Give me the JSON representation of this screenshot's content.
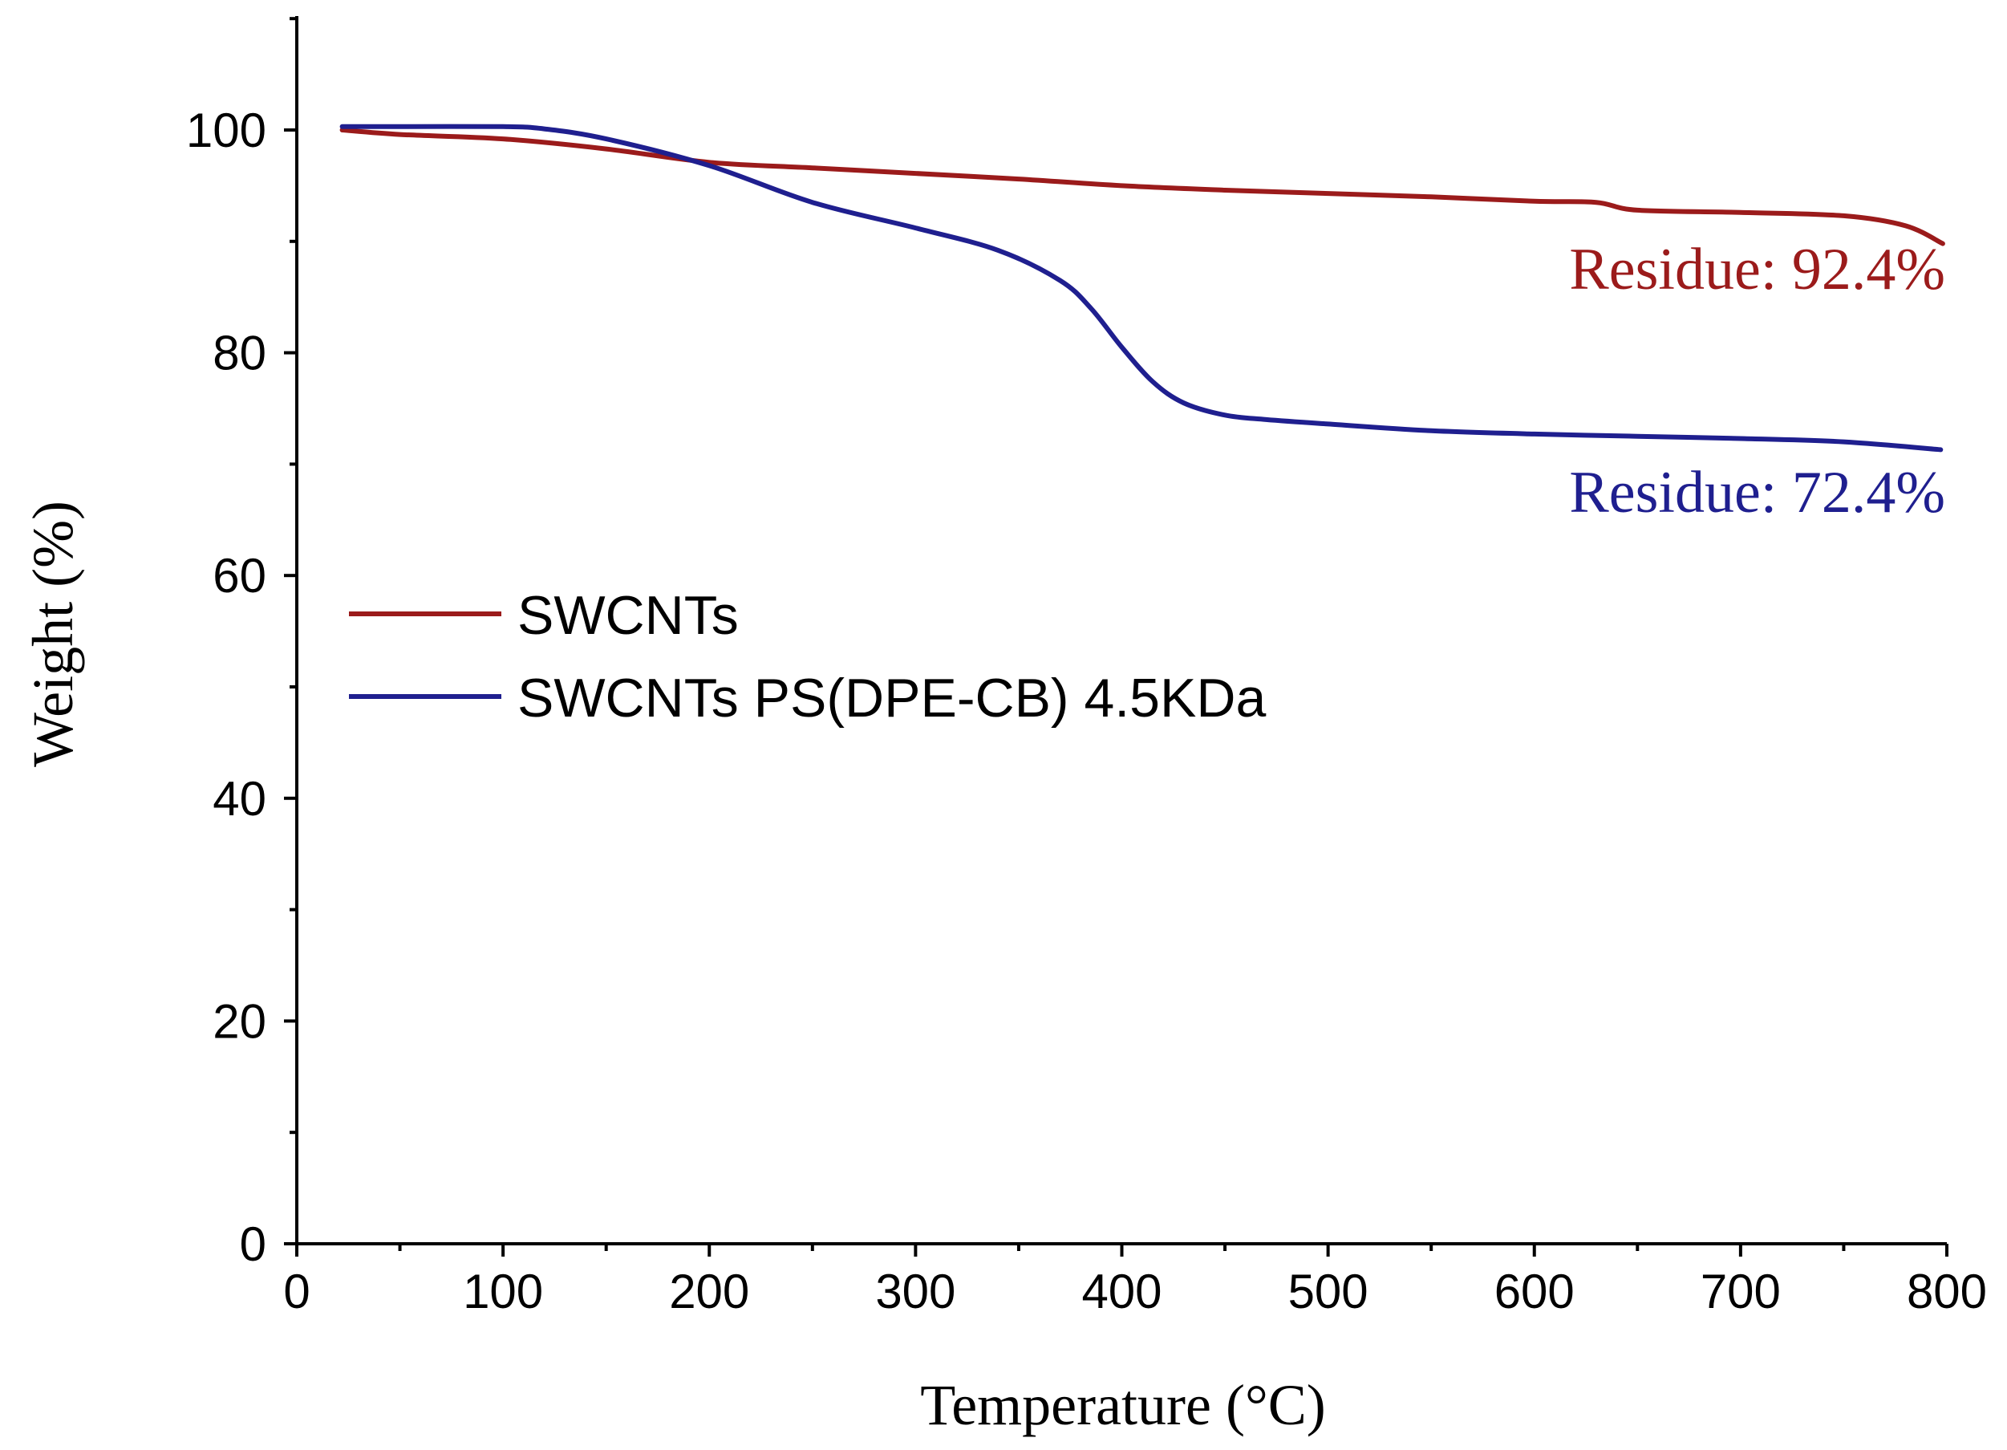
{
  "chart_data": {
    "type": "line",
    "xlabel": "Temperature (°C)",
    "ylabel": "Weight (%)",
    "xlim": [
      0,
      800
    ],
    "ylim": [
      0,
      110
    ],
    "xticks": [
      0,
      100,
      200,
      300,
      400,
      500,
      600,
      700,
      800
    ],
    "yticks": [
      0,
      20,
      40,
      60,
      80,
      100
    ],
    "xtick_labels": [
      "0",
      "100",
      "200",
      "300",
      "400",
      "500",
      "600",
      "700",
      "800"
    ],
    "ytick_labels": [
      "0",
      "20",
      "40",
      "60",
      "80",
      "100"
    ],
    "grid": false,
    "legend_position": "center-left",
    "series": [
      {
        "name": "SWCNTs",
        "color": "#9b1b1b",
        "x": [
          22,
          50,
          100,
          150,
          200,
          250,
          300,
          350,
          400,
          450,
          500,
          550,
          600,
          630,
          650,
          700,
          750,
          780,
          798
        ],
        "y": [
          100,
          99.6,
          99.2,
          98.3,
          97.1,
          96.6,
          96.1,
          95.6,
          95.0,
          94.6,
          94.3,
          94.0,
          93.6,
          93.5,
          92.8,
          92.6,
          92.3,
          91.4,
          89.8
        ]
      },
      {
        "name": "SWCNTs PS(DPE-CB) 4.5KDa",
        "color": "#1f1f8f",
        "x": [
          22,
          50,
          100,
          120,
          150,
          200,
          250,
          300,
          340,
          370,
          385,
          400,
          415,
          430,
          450,
          470,
          500,
          550,
          600,
          650,
          700,
          750,
          797
        ],
        "y": [
          100.3,
          100.3,
          100.3,
          100.1,
          99.2,
          96.8,
          93.5,
          91.2,
          89.2,
          86.5,
          84.0,
          80.5,
          77.4,
          75.5,
          74.4,
          74.0,
          73.6,
          73.0,
          72.7,
          72.5,
          72.3,
          72.0,
          71.3
        ]
      }
    ],
    "annotations": [
      {
        "text": "Residue: 92.4%",
        "color": "#9b1b1b"
      },
      {
        "text": "Residue: 72.4%",
        "color": "#1f1f8f"
      }
    ]
  }
}
